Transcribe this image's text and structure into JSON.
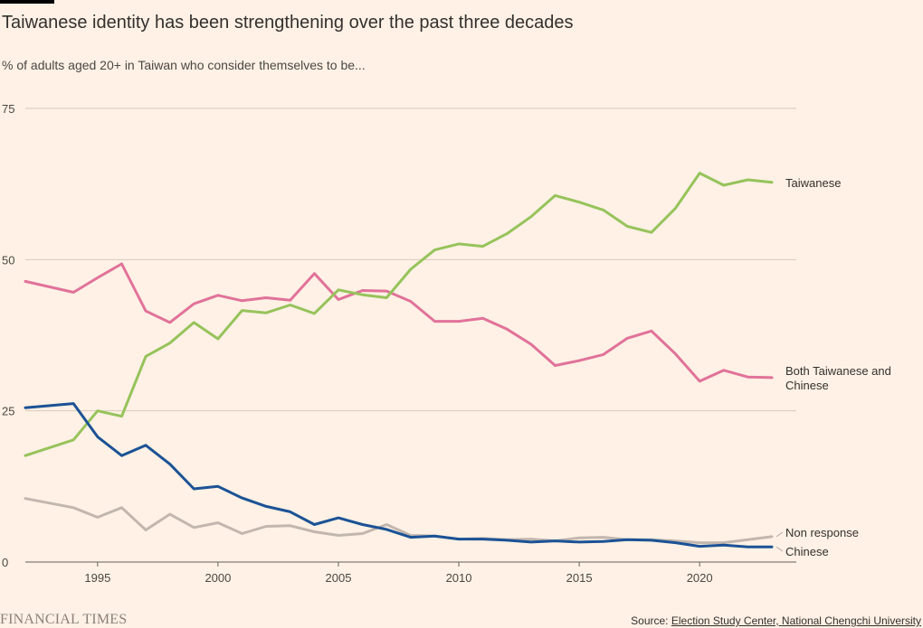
{
  "title": "Taiwanese identity has been strengthening over the past three decades",
  "subtitle": "% of adults aged 20+ in Taiwan who consider themselves to be...",
  "footer": {
    "brand": "FINANCIAL TIMES",
    "source_prefix": "Source: ",
    "source_link": "Election Study Center, National Chengchi University"
  },
  "colors": {
    "background": "#fff1e5",
    "grid": "#d9c8b9",
    "taiwanese": "#96c35b",
    "both": "#e1729a",
    "chinese": "#1b5295",
    "non_response": "#c2b6ae"
  },
  "chart_data": {
    "type": "line",
    "x": [
      1992,
      1994,
      1995,
      1996,
      1997,
      1998,
      1999,
      2000,
      2001,
      2002,
      2003,
      2004,
      2005,
      2006,
      2007,
      2008,
      2009,
      2010,
      2011,
      2012,
      2013,
      2014,
      2015,
      2016,
      2017,
      2018,
      2019,
      2020,
      2021,
      2022,
      2023
    ],
    "xlim": [
      1992,
      2023
    ],
    "ylim": [
      0,
      75
    ],
    "x_ticks": [
      "1995",
      "2000",
      "2005",
      "2010",
      "2015",
      "2020"
    ],
    "y_ticks": [
      "0",
      "25",
      "50",
      "75"
    ],
    "grid": true,
    "series": [
      {
        "key": "taiwanese",
        "name": "Taiwanese",
        "values": [
          17.6,
          20.2,
          25.0,
          24.1,
          34.0,
          36.2,
          39.6,
          36.9,
          41.6,
          41.2,
          42.5,
          41.1,
          45.0,
          44.2,
          43.7,
          48.4,
          51.6,
          52.6,
          52.2,
          54.3,
          57.1,
          60.6,
          59.5,
          58.2,
          55.5,
          54.5,
          58.5,
          64.3,
          62.3,
          63.2,
          62.8
        ]
      },
      {
        "key": "both",
        "name": "Both Taiwanese and Chinese",
        "values": [
          46.4,
          44.6,
          47.0,
          49.3,
          41.5,
          39.6,
          42.7,
          44.1,
          43.2,
          43.7,
          43.3,
          47.7,
          43.4,
          44.9,
          44.8,
          43.1,
          39.8,
          39.8,
          40.3,
          38.5,
          36.0,
          32.5,
          33.3,
          34.3,
          37.0,
          38.2,
          34.4,
          29.9,
          31.7,
          30.6,
          30.5
        ]
      },
      {
        "key": "chinese",
        "name": "Chinese",
        "values": [
          25.5,
          26.2,
          20.7,
          17.6,
          19.3,
          16.2,
          12.1,
          12.5,
          10.6,
          9.2,
          8.3,
          6.2,
          7.3,
          6.2,
          5.4,
          4.1,
          4.3,
          3.8,
          3.8,
          3.6,
          3.3,
          3.5,
          3.3,
          3.4,
          3.7,
          3.6,
          3.2,
          2.6,
          2.8,
          2.5,
          2.5
        ]
      },
      {
        "key": "non_response",
        "name": "Non response",
        "values": [
          10.5,
          9.0,
          7.4,
          9.0,
          5.3,
          7.9,
          5.7,
          6.5,
          4.7,
          5.9,
          6.0,
          5.0,
          4.4,
          4.7,
          6.2,
          4.4,
          4.3,
          3.8,
          3.9,
          3.7,
          3.8,
          3.5,
          4.0,
          4.1,
          3.7,
          3.7,
          3.5,
          3.2,
          3.2,
          3.7,
          4.2
        ]
      }
    ]
  }
}
